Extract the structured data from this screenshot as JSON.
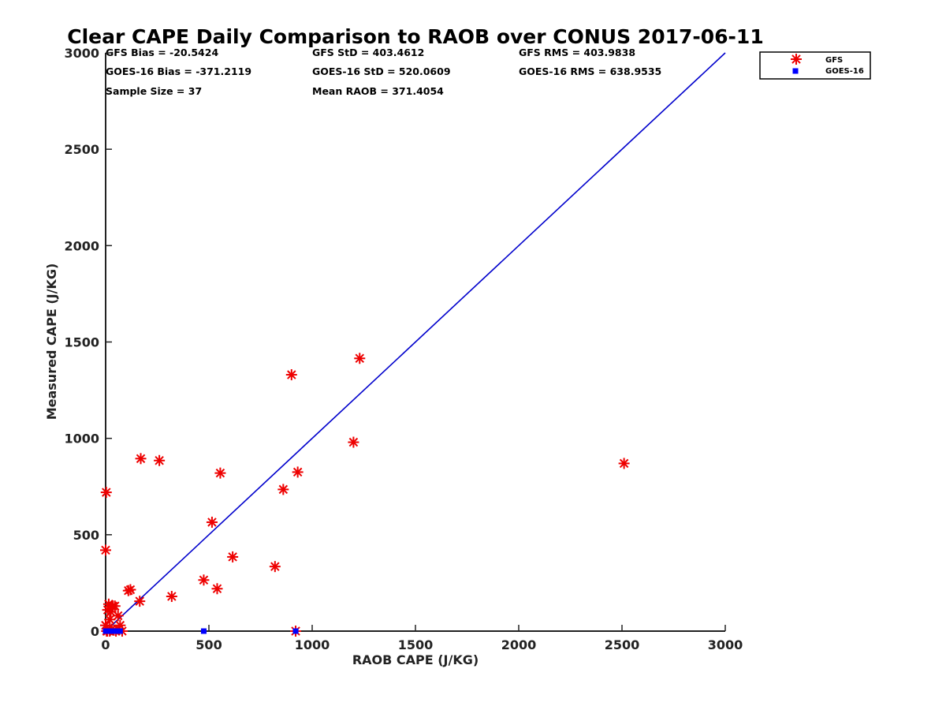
{
  "chart_data": {
    "type": "scatter",
    "title": "Clear CAPE Daily Comparison to RAOB over CONUS 2017-06-11",
    "xlabel": "RAOB CAPE (J/KG)",
    "ylabel": "Measured CAPE (J/KG)",
    "xlim": [
      0,
      3000
    ],
    "ylim": [
      0,
      3000
    ],
    "x_ticks": [
      0,
      500,
      1000,
      1500,
      2000,
      2500,
      3000
    ],
    "y_ticks": [
      0,
      500,
      1000,
      1500,
      2000,
      2500,
      3000
    ],
    "x_tick_labels": [
      "0",
      "500",
      "1000",
      "1500",
      "2000",
      "2500",
      "3000"
    ],
    "y_tick_labels": [
      "0",
      "500",
      "1000",
      "1500",
      "2000",
      "2500",
      "3000"
    ],
    "grid": false,
    "legend_position": "top-right",
    "stats": {
      "row1": [
        "GFS Bias = -20.5424",
        "GFS StD = 403.4612",
        "GFS RMS = 403.9838"
      ],
      "row2": [
        "GOES-16 Bias = -371.2119",
        "GOES-16 StD = 520.0609",
        "GOES-16 RMS = 638.9535"
      ],
      "row3": [
        "Sample Size = 37",
        "Mean RAOB = 371.4054"
      ]
    },
    "reference_line": {
      "x": [
        0,
        3000
      ],
      "y": [
        0,
        3000
      ],
      "color": "#0000cc"
    },
    "series": [
      {
        "name": "GFS",
        "marker": "asterisk",
        "color": "#ee0000",
        "x": [
          0,
          3,
          8,
          10,
          15,
          20,
          25,
          30,
          35,
          40,
          45,
          50,
          60,
          70,
          80,
          110,
          120,
          165,
          170,
          260,
          320,
          475,
          515,
          540,
          555,
          615,
          820,
          860,
          900,
          920,
          930,
          1200,
          1230,
          2510,
          5,
          0,
          20
        ],
        "y": [
          420,
          720,
          0,
          110,
          140,
          60,
          100,
          10,
          130,
          5,
          130,
          0,
          80,
          30,
          0,
          210,
          215,
          155,
          895,
          885,
          180,
          265,
          565,
          220,
          820,
          385,
          335,
          735,
          1330,
          0,
          825,
          980,
          1415,
          870,
          0,
          30,
          0
        ]
      },
      {
        "name": "GOES-16",
        "marker": "square",
        "color": "#0000ff",
        "x": [
          0,
          5,
          10,
          20,
          30,
          40,
          50,
          70,
          475,
          920
        ],
        "y": [
          0,
          0,
          0,
          0,
          0,
          0,
          0,
          0,
          0,
          0
        ]
      }
    ]
  }
}
